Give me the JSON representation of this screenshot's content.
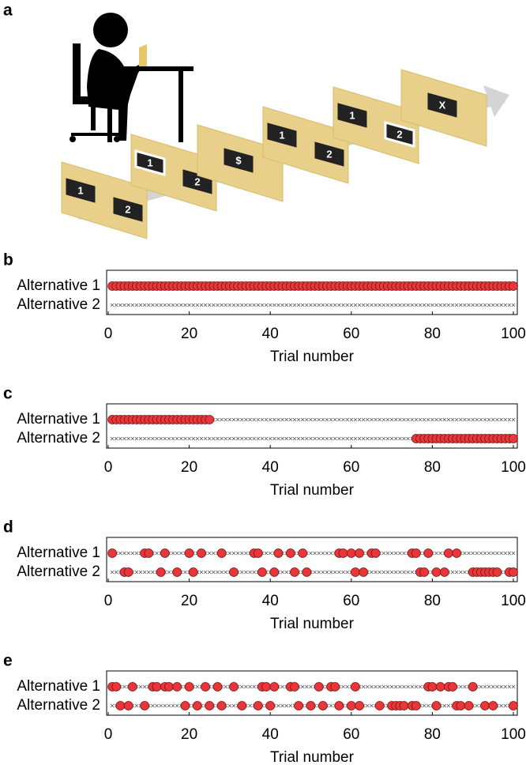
{
  "illustration": {
    "panel": "a",
    "cards": [
      [
        "1",
        "2"
      ],
      [
        "1",
        "2"
      ],
      [
        "$"
      ],
      [
        "1",
        "2"
      ],
      [
        "1",
        "2"
      ],
      [
        "X"
      ]
    ]
  },
  "chart_data": [
    {
      "type": "choice",
      "panel": "b",
      "xlabel": "Trial number",
      "xlim": [
        0,
        100
      ],
      "xticks": [
        0,
        20,
        40,
        60,
        80,
        100
      ],
      "series": [
        {
          "name": "Alternative 1",
          "color": "#e8373a",
          "trials": [
            1,
            2,
            3,
            4,
            5,
            6,
            7,
            8,
            9,
            10,
            11,
            12,
            13,
            14,
            15,
            16,
            17,
            18,
            19,
            20,
            21,
            22,
            23,
            24,
            25,
            26,
            27,
            28,
            29,
            30,
            31,
            32,
            33,
            34,
            35,
            36,
            37,
            38,
            39,
            40,
            41,
            42,
            43,
            44,
            45,
            46,
            47,
            48,
            49,
            50,
            51,
            52,
            53,
            54,
            55,
            56,
            57,
            58,
            59,
            60,
            61,
            62,
            63,
            64,
            65,
            66,
            67,
            68,
            69,
            70,
            71,
            72,
            73,
            74,
            75,
            76,
            77,
            78,
            79,
            80,
            81,
            82,
            83,
            84,
            85,
            86,
            87,
            88,
            89,
            90,
            91,
            92,
            93,
            94,
            95,
            96,
            97,
            98,
            99,
            100
          ]
        },
        {
          "name": "Alternative 2",
          "color": "#e8373a",
          "trials": []
        }
      ]
    },
    {
      "type": "choice",
      "panel": "c",
      "xlabel": "Trial number",
      "xlim": [
        0,
        100
      ],
      "xticks": [
        0,
        20,
        40,
        60,
        80,
        100
      ],
      "series": [
        {
          "name": "Alternative 1",
          "color": "#e8373a",
          "trials": [
            1,
            2,
            3,
            4,
            5,
            6,
            7,
            8,
            9,
            10,
            11,
            12,
            13,
            14,
            15,
            16,
            17,
            18,
            19,
            20,
            21,
            22,
            23,
            24,
            25
          ]
        },
        {
          "name": "Alternative 2",
          "color": "#e8373a",
          "trials": [
            76,
            77,
            78,
            79,
            80,
            81,
            82,
            83,
            84,
            85,
            86,
            87,
            88,
            89,
            90,
            91,
            92,
            93,
            94,
            95,
            96,
            97,
            98,
            99,
            100
          ]
        }
      ]
    },
    {
      "type": "choice",
      "panel": "d",
      "xlabel": "Trial number",
      "xlim": [
        0,
        100
      ],
      "xticks": [
        0,
        20,
        40,
        60,
        80,
        100
      ],
      "series": [
        {
          "name": "Alternative 1",
          "color": "#e8373a",
          "trials": [
            1,
            9,
            10,
            14,
            20,
            23,
            28,
            36,
            37,
            42,
            45,
            48,
            57,
            58,
            60,
            62,
            65,
            66,
            75,
            76,
            79,
            84,
            86
          ]
        },
        {
          "name": "Alternative 2",
          "color": "#e8373a",
          "trials": [
            4,
            5,
            13,
            17,
            21,
            31,
            38,
            41,
            46,
            49,
            61,
            63,
            77,
            78,
            81,
            83,
            90,
            91,
            92,
            93,
            94,
            95,
            96,
            99,
            100
          ]
        }
      ]
    },
    {
      "type": "choice",
      "panel": "e",
      "xlabel": "Trial number",
      "xlim": [
        0,
        100
      ],
      "xticks": [
        0,
        20,
        40,
        60,
        80,
        100
      ],
      "series": [
        {
          "name": "Alternative 1",
          "color": "#e8373a",
          "trials": [
            1,
            2,
            6,
            11,
            12,
            14,
            15,
            17,
            20,
            24,
            27,
            31,
            38,
            39,
            41,
            45,
            46,
            52,
            55,
            56,
            61,
            79,
            80,
            82,
            84,
            85,
            90
          ]
        },
        {
          "name": "Alternative 2",
          "color": "#e8373a",
          "trials": [
            3,
            5,
            9,
            19,
            22,
            25,
            28,
            33,
            37,
            40,
            47,
            50,
            53,
            57,
            60,
            62,
            67,
            70,
            71,
            72,
            73,
            75,
            76,
            81,
            86,
            87,
            89,
            93,
            95,
            100
          ]
        }
      ]
    }
  ]
}
